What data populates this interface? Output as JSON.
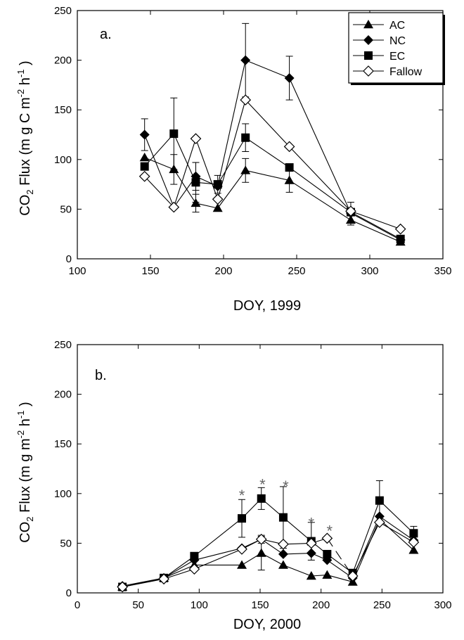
{
  "chart_data": [
    {
      "type": "line",
      "panel_label": "a.",
      "xlabel": "DOY, 1999",
      "ylabel_main": "CO",
      "ylabel_sub": "2",
      "ylabel_rest": " Flux (m g C m",
      "ylabel_sup1": "-2",
      "ylabel_mid": " h",
      "ylabel_sup2": "-1",
      "ylabel_end": " )",
      "xlim": [
        100,
        350
      ],
      "ylim": [
        0,
        250
      ],
      "xticks": [
        100,
        150,
        200,
        250,
        300,
        350
      ],
      "yticks": [
        0,
        50,
        100,
        150,
        200,
        250
      ],
      "legend": {
        "position": "top-right"
      },
      "series": [
        {
          "name": "AC",
          "marker": "triangle",
          "x": [
            146,
            166,
            181,
            196,
            215,
            245,
            287,
            321
          ],
          "y": [
            102,
            90,
            56,
            51,
            89,
            79,
            39,
            17
          ],
          "err": [
            0,
            15,
            9,
            0,
            12,
            12,
            5,
            0
          ]
        },
        {
          "name": "NC",
          "marker": "diamond",
          "x": [
            146,
            166,
            181,
            196,
            215,
            245,
            287,
            321
          ],
          "y": [
            125,
            52,
            83,
            73,
            200,
            182,
            46,
            19
          ],
          "err": [
            16,
            0,
            14,
            0,
            37,
            22,
            0,
            0
          ]
        },
        {
          "name": "EC",
          "marker": "square",
          "x": [
            146,
            166,
            181,
            196,
            215,
            245,
            287,
            321
          ],
          "y": [
            93,
            126,
            77,
            75,
            122,
            92,
            47,
            20
          ],
          "err": [
            0,
            36,
            20,
            9,
            14,
            0,
            10,
            0
          ]
        },
        {
          "name": "Fallow",
          "marker": "open-diamond",
          "x": [
            146,
            166,
            181,
            196,
            215,
            245,
            287,
            321
          ],
          "y": [
            83,
            52,
            121,
            60,
            160,
            113,
            48,
            30
          ],
          "err": [
            0,
            0,
            0,
            0,
            0,
            0,
            0,
            0
          ]
        }
      ]
    },
    {
      "type": "line",
      "panel_label": "b.",
      "xlabel": "DOY, 2000",
      "ylabel_main": "CO",
      "ylabel_sub": "2",
      "ylabel_rest": " Flux (m g m",
      "ylabel_sup1": "-2",
      "ylabel_mid": " h",
      "ylabel_sup2": "-1",
      "ylabel_end": " )",
      "xlim": [
        0,
        300
      ],
      "ylim": [
        0,
        250
      ],
      "xticks": [
        0,
        50,
        100,
        150,
        200,
        250,
        300
      ],
      "yticks": [
        0,
        50,
        100,
        150,
        200,
        250
      ],
      "significance_marker": "*",
      "significance_x": [
        135,
        152,
        171,
        192,
        207
      ],
      "significance_y": [
        100,
        111,
        109,
        72,
        64
      ],
      "series": [
        {
          "name": "AC",
          "marker": "triangle",
          "x": [
            37,
            71,
            96,
            135,
            151,
            169,
            192,
            205,
            226,
            248,
            276
          ],
          "y": [
            6,
            15,
            28,
            28,
            40,
            28,
            17,
            18,
            11,
            74,
            43
          ],
          "err": [
            0,
            0,
            0,
            0,
            17,
            0,
            0,
            0,
            0,
            0,
            0
          ]
        },
        {
          "name": "NC",
          "marker": "diamond",
          "x": [
            37,
            71,
            96,
            135,
            151,
            169,
            192,
            205,
            226,
            248,
            276
          ],
          "y": [
            7,
            15,
            33,
            45,
            54,
            39,
            40,
            33,
            15,
            77,
            53
          ],
          "err": [
            0,
            0,
            0,
            0,
            4,
            0,
            0,
            0,
            0,
            0,
            0
          ]
        },
        {
          "name": "EC",
          "marker": "square",
          "x": [
            37,
            71,
            96,
            135,
            151,
            169,
            192,
            205,
            226,
            248,
            276
          ],
          "y": [
            6,
            15,
            37,
            75,
            95,
            76,
            52,
            39,
            20,
            93,
            60
          ],
          "err": [
            0,
            0,
            0,
            19,
            11,
            31,
            19,
            0,
            0,
            20,
            7
          ]
        },
        {
          "name": "Fallow",
          "marker": "open-diamond",
          "x": [
            37,
            71,
            96,
            135,
            151,
            169,
            192,
            205,
            226,
            248,
            276
          ],
          "y": [
            6,
            14,
            24,
            44,
            54,
            49,
            50,
            55,
            17,
            71,
            51
          ],
          "err": [
            0,
            0,
            0,
            0,
            0,
            0,
            0,
            0,
            0,
            0,
            0
          ],
          "dashed_segment_from_index": 7
        }
      ]
    }
  ]
}
